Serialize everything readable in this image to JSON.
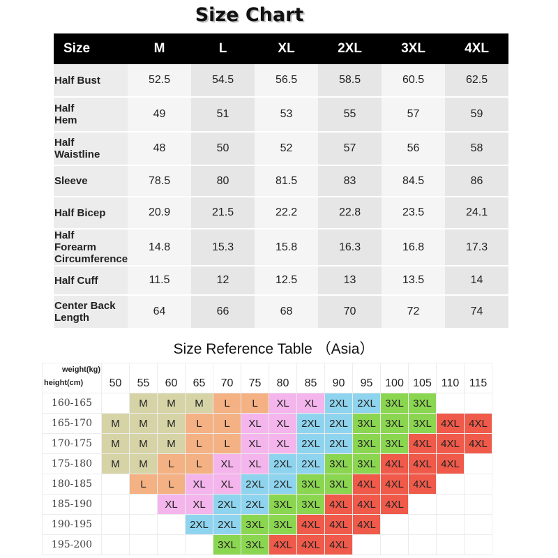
{
  "size_chart": {
    "title": "Size Chart",
    "corner": "Size",
    "sizes": [
      "M",
      "L",
      "XL",
      "2XL",
      "3XL",
      "4XL"
    ],
    "rows": [
      {
        "label": [
          "Half Bust"
        ],
        "values": [
          "52.5",
          "54.5",
          "56.5",
          "58.5",
          "60.5",
          "62.5"
        ]
      },
      {
        "label": [
          "Half",
          "Hem"
        ],
        "values": [
          "49",
          "51",
          "53",
          "55",
          "57",
          "59"
        ]
      },
      {
        "label": [
          "Half",
          "Waistline"
        ],
        "values": [
          "48",
          "50",
          "52",
          "57",
          "56",
          "58"
        ]
      },
      {
        "label": [
          "Sleeve"
        ],
        "values": [
          "78.5",
          "80",
          "81.5",
          "83",
          "84.5",
          "86"
        ]
      },
      {
        "label": [
          "Half Bicep"
        ],
        "values": [
          "20.9",
          "21.5",
          "22.2",
          "22.8",
          "23.5",
          "24.1"
        ]
      },
      {
        "label": [
          "Half",
          "Forearm",
          "Circumference"
        ],
        "values": [
          "14.8",
          "15.3",
          "15.8",
          "16.3",
          "16.8",
          "17.3"
        ]
      },
      {
        "label": [
          "Half Cuff"
        ],
        "values": [
          "11.5",
          "12",
          "12.5",
          "13",
          "13.5",
          "14"
        ]
      },
      {
        "label": [
          "Center Back",
          "Length"
        ],
        "values": [
          "64",
          "66",
          "68",
          "70",
          "72",
          "74"
        ]
      }
    ]
  },
  "reference": {
    "title": "Size Reference Table （Asia）",
    "weight_label": "weight(kg)",
    "height_label": "height(cm)",
    "weights": [
      "50",
      "55",
      "60",
      "65",
      "70",
      "75",
      "80",
      "85",
      "90",
      "95",
      "100",
      "105",
      "110",
      "115"
    ],
    "rows": [
      {
        "height": "160-165",
        "cells": [
          "",
          "M",
          "M",
          "M",
          "L",
          "L",
          "XL",
          "XL",
          "2XL",
          "2XL",
          "3XL",
          "3XL",
          "",
          ""
        ]
      },
      {
        "height": "165-170",
        "cells": [
          "M",
          "M",
          "M",
          "L",
          "L",
          "XL",
          "XL",
          "2XL",
          "2XL",
          "3XL",
          "3XL",
          "3XL",
          "4XL",
          "4XL"
        ]
      },
      {
        "height": "170-175",
        "cells": [
          "M",
          "M",
          "M",
          "L",
          "L",
          "XL",
          "XL",
          "2XL",
          "2XL",
          "3XL",
          "3XL",
          "4XL",
          "4XL",
          "4XL"
        ]
      },
      {
        "height": "175-180",
        "cells": [
          "M",
          "M",
          "L",
          "L",
          "XL",
          "XL",
          "2XL",
          "2XL",
          "3XL",
          "3XL",
          "4XL",
          "4XL",
          "4XL",
          ""
        ]
      },
      {
        "height": "180-185",
        "cells": [
          "",
          "L",
          "L",
          "XL",
          "XL",
          "2XL",
          "2XL",
          "3XL",
          "3XL",
          "4XL",
          "4XL",
          "4XL",
          "",
          ""
        ]
      },
      {
        "height": "185-190",
        "cells": [
          "",
          "",
          "XL",
          "XL",
          "2XL",
          "2XL",
          "3XL",
          "3XL",
          "4XL",
          "4XL",
          "4XL",
          "",
          "",
          ""
        ]
      },
      {
        "height": "190-195",
        "cells": [
          "",
          "",
          "",
          "2XL",
          "2XL",
          "3XL",
          "3XL",
          "4XL",
          "4XL",
          "4XL",
          "",
          "",
          "",
          ""
        ]
      },
      {
        "height": "195-200",
        "cells": [
          "",
          "",
          "",
          "",
          "3XL",
          "3XL",
          "4XL",
          "4XL",
          "4XL",
          "",
          "",
          "",
          "",
          ""
        ]
      }
    ],
    "colors": {
      "M": "#d6d4a6",
      "L": "#f4b183",
      "XL": "#f4b4ec",
      "2XL": "#8fd4ee",
      "3XL": "#8bd650",
      "4XL": "#f05a4a"
    }
  }
}
